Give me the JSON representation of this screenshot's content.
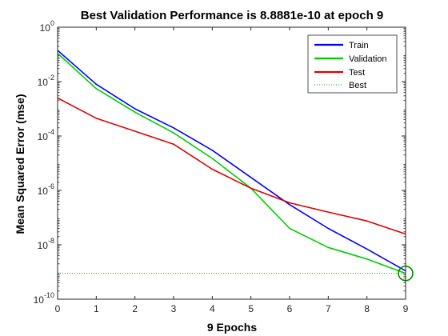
{
  "chart_data": {
    "type": "line",
    "title": "Best Validation Performance is 8.8881e-10 at epoch 9",
    "xlabel": "9 Epochs",
    "ylabel": "Mean Squared Error  (mse)",
    "yscale": "log",
    "xlim": [
      0,
      9
    ],
    "ylim": [
      1e-10,
      1
    ],
    "x_ticks": [
      0,
      1,
      2,
      3,
      4,
      5,
      6,
      7,
      8,
      9
    ],
    "y_ticks": [
      {
        "exp": -10,
        "base": "10",
        "power": "-10"
      },
      {
        "exp": -8,
        "base": "10",
        "power": "-8"
      },
      {
        "exp": -6,
        "base": "10",
        "power": "-6"
      },
      {
        "exp": -4,
        "base": "10",
        "power": "-4"
      },
      {
        "exp": -2,
        "base": "10",
        "power": "-2"
      },
      {
        "exp": 0,
        "base": "10",
        "power": "0"
      }
    ],
    "x": [
      0,
      1,
      2,
      3,
      4,
      5,
      6,
      7,
      8,
      9
    ],
    "series": [
      {
        "name": "Train",
        "color": "#0000ff",
        "style": "solid",
        "values": [
          0.14,
          0.008,
          0.001,
          0.0002,
          3e-05,
          3e-06,
          3e-07,
          4e-08,
          7e-09,
          1.1e-09
        ]
      },
      {
        "name": "Validation",
        "color": "#00cc00",
        "style": "solid",
        "values": [
          0.11,
          0.0055,
          0.00075,
          0.00013,
          1.5e-05,
          1.2e-06,
          4e-08,
          8e-09,
          3e-09,
          8.8881e-10
        ]
      },
      {
        "name": "Test",
        "color": "#e00000",
        "style": "solid",
        "values": [
          0.0025,
          0.00045,
          0.00015,
          5e-05,
          6e-06,
          1.2e-06,
          3.5e-07,
          1.6e-07,
          7.5e-08,
          2.5e-08
        ]
      },
      {
        "name": "Best",
        "color": "#00aa00",
        "style": "dotted"
      }
    ],
    "best": {
      "epoch": 9,
      "value": 8.8881e-10
    },
    "grid": false,
    "legend_position": "top-right"
  }
}
